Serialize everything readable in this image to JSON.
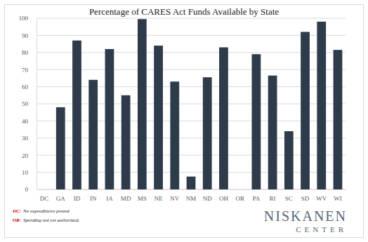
{
  "chart_data": {
    "type": "bar",
    "title": "Percentage of CARES Act Funds Available by State",
    "categories": [
      "DC",
      "GA",
      "ID",
      "IN",
      "IA",
      "MD",
      "MS",
      "NE",
      "NV",
      "NM",
      "ND",
      "OH",
      "OR",
      "PA",
      "RI",
      "SC",
      "SD",
      "WV",
      "WI"
    ],
    "values": [
      null,
      48,
      87,
      64,
      82,
      55,
      99.5,
      84,
      63,
      7.5,
      65.5,
      83,
      null,
      79,
      66.5,
      34,
      92,
      98,
      81.5
    ],
    "color": "#2e3b4a",
    "ylim": [
      0,
      100
    ],
    "yticks": [
      0,
      10,
      20,
      30,
      40,
      50,
      60,
      70,
      80,
      90,
      100
    ],
    "grid": true,
    "notes": [
      {
        "label": "DC:",
        "text": "No expenditures posted"
      },
      {
        "label": "OR:",
        "text": "Spending not yet authorized."
      }
    ],
    "logo": [
      "NISKANEN",
      "CENTER"
    ]
  }
}
